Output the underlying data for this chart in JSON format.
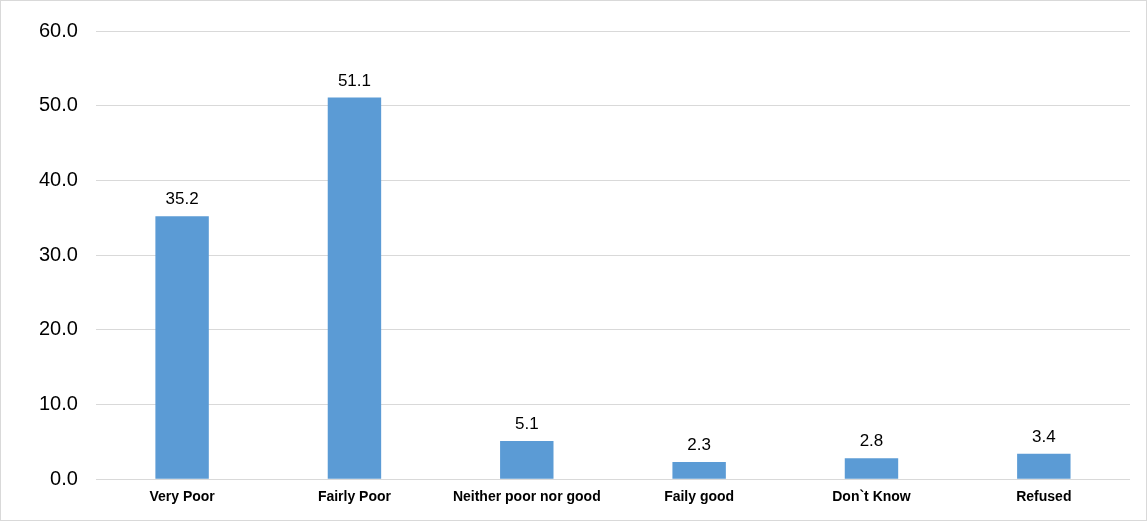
{
  "chart_data": {
    "type": "bar",
    "categories": [
      "Very Poor",
      "Fairly Poor",
      "Neither poor nor good",
      "Faily good",
      "Don`t Know",
      "Refused"
    ],
    "values": [
      35.2,
      51.1,
      5.1,
      2.3,
      2.8,
      3.4
    ],
    "color": "#5b9bd5",
    "ylim": [
      0,
      60
    ],
    "yticks": [
      {
        "value": 0,
        "label": "0.0"
      },
      {
        "value": 10,
        "label": "10.0"
      },
      {
        "value": 20,
        "label": "20.0"
      },
      {
        "value": 30,
        "label": "30.0"
      },
      {
        "value": 40,
        "label": "40.0"
      },
      {
        "value": 50,
        "label": "50.0"
      },
      {
        "value": 60,
        "label": "60.0"
      }
    ],
    "grid": "y",
    "data_labels": true
  }
}
